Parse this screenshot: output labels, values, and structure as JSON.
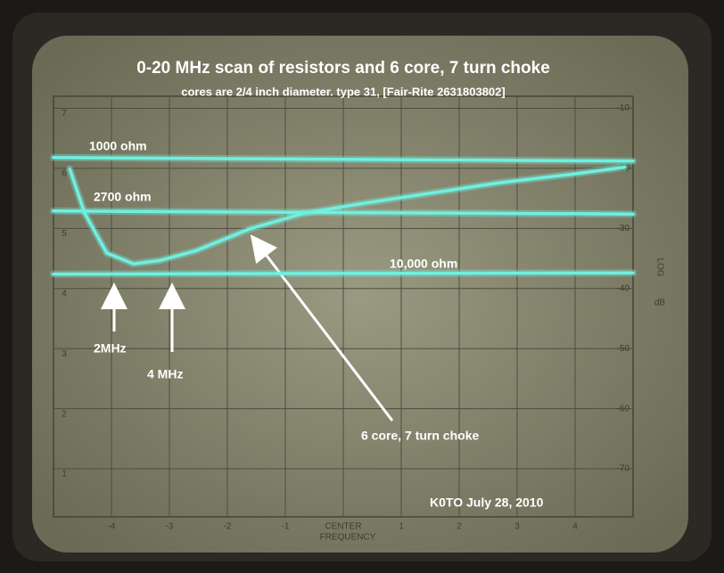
{
  "chart_data": {
    "type": "line",
    "title": "0-20 MHz scan of resistors and 6 core, 7 turn choke",
    "subtitle": "cores are 2/4 inch diameter. type 31, [Fair-Rite 2631803802]",
    "x_label": "FREQUENCY",
    "y_label": "LOG",
    "y_unit": "dB",
    "xlim": [
      -5,
      5
    ],
    "xticks": [
      -4,
      -3,
      -2,
      -1,
      {
        "value": 0,
        "label": "CENTER"
      },
      1,
      2,
      3,
      4
    ],
    "ylim": [
      -78,
      -8
    ],
    "yticks": [
      -10,
      -20,
      -30,
      -40,
      -50,
      -60,
      -70
    ],
    "y2lim": [
      0.2,
      7.2
    ],
    "y2ticks": [
      1,
      2,
      3,
      4,
      5,
      6,
      7
    ],
    "grid": true,
    "series": [
      {
        "name": "1000 ohm",
        "color": "#6ff0e0",
        "x": [
          -5,
          5
        ],
        "values": [
          -18.2,
          -18.8
        ]
      },
      {
        "name": "2700 ohm",
        "color": "#6ff0e0",
        "x": [
          -5,
          5
        ],
        "values": [
          -27.1,
          -27.6
        ]
      },
      {
        "name": "10,000 ohm",
        "color": "#6ff0e0",
        "x": [
          -5,
          5
        ],
        "values": [
          -37.6,
          -37.4
        ]
      },
      {
        "name": "6 core, 7 turn choke",
        "color": "#6ff0e0",
        "x": [
          -4.72,
          -4.46,
          -4.08,
          -3.62,
          -3.15,
          -2.54,
          -1.62,
          -0.69,
          0.23,
          1.46,
          2.69,
          3.92,
          4.85
        ],
        "values": [
          -20.1,
          -27.5,
          -34.1,
          -35.9,
          -35.3,
          -33.7,
          -30.1,
          -27.5,
          -26,
          -24.2,
          -22.4,
          -21,
          -19.8
        ]
      }
    ],
    "annotations": [
      "2MHz",
      "4 MHz",
      "K0TO July 28, 2010"
    ]
  }
}
